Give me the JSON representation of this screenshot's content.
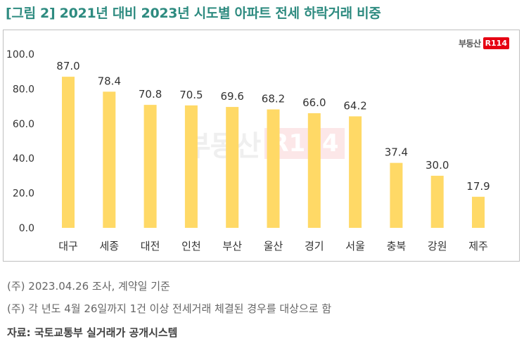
{
  "title": "[그림 2] 2021년 대비 2023년 시도별 아파트 전세 하락거래 비중",
  "logo": {
    "text": "부동산",
    "badge": "R114"
  },
  "notes": [
    "(주) 2023.04.26 조사, 계약일 기준",
    "(주) 각 년도 4월 26일까지 1건 이상 전세거래 체결된 경우를 대상으로 함"
  ],
  "source": "자료: 국토교통부 실거래가 공개시스템",
  "colors": {
    "bar": "#ffd966",
    "title": "#2e8b80",
    "border": "#bfbfbf"
  },
  "chart_data": {
    "type": "bar",
    "title": "",
    "xlabel": "",
    "ylabel": "",
    "categories": [
      "대구",
      "세종",
      "대전",
      "인천",
      "부산",
      "울산",
      "경기",
      "서울",
      "충북",
      "강원",
      "제주"
    ],
    "values": [
      87.0,
      78.4,
      70.8,
      70.5,
      69.6,
      68.2,
      66.0,
      64.2,
      37.4,
      30.0,
      17.9
    ],
    "ylim": [
      0,
      100
    ],
    "yticks": [
      "0.0",
      "20.0",
      "40.0",
      "60.0",
      "80.0",
      "100.0"
    ],
    "data_labels": [
      "87.0",
      "78.4",
      "70.8",
      "70.5",
      "69.6",
      "68.2",
      "66.0",
      "64.2",
      "37.4",
      "30.0",
      "17.9"
    ],
    "grid": false,
    "legend": "none"
  }
}
